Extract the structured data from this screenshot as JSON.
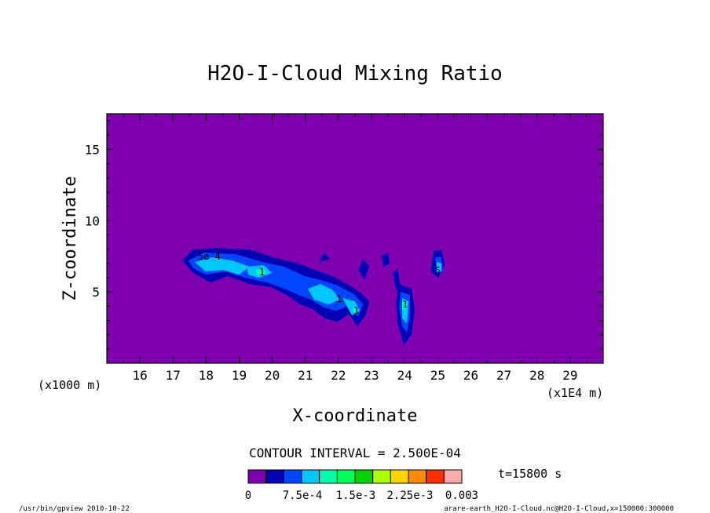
{
  "chart_data": {
    "type": "heatmap",
    "title": "H2O-I-Cloud Mixing Ratio",
    "xlabel": "X-coordinate",
    "ylabel": "Z-coordinate",
    "x_unit_label": "(x1000 m)",
    "x_scale_label": "(x1E4 m)",
    "x_ticks": [
      "16",
      "17",
      "18",
      "19",
      "20",
      "21",
      "22",
      "23",
      "24",
      "25",
      "26",
      "27",
      "28",
      "29"
    ],
    "y_ticks": [
      "5",
      "10",
      "15"
    ],
    "xlim": [
      15,
      30
    ],
    "ylim": [
      0,
      17.5
    ],
    "contour_interval_label": "CONTOUR INTERVAL = 2.500E-04",
    "time_label": "t=15800 s",
    "inline_labels": [
      "5e-4",
      "1",
      "1",
      "1",
      "1",
      "5"
    ],
    "colorbar": {
      "colors": [
        "#7f00ae",
        "#0000b4",
        "#0046ff",
        "#00c8ff",
        "#00ffaa",
        "#00ff55",
        "#00d400",
        "#aaff00",
        "#ffd200",
        "#ff8c00",
        "#ff3000",
        "#ffaaaa"
      ],
      "tick_labels": [
        "0",
        "7.5e-4",
        "1.5e-3",
        "2.25e-3",
        "0.003"
      ]
    },
    "background_color": "#7f00ae",
    "levels": [
      "5.0e-4",
      "7.5e-4",
      "1.0e-3",
      "1.25e-3"
    ]
  },
  "footer": {
    "left": "/usr/bin/gpview  2010-10-22",
    "right": "arare-earth_H2O-I-Cloud.nc@H2O-I-Cloud,x=150000:300000"
  }
}
